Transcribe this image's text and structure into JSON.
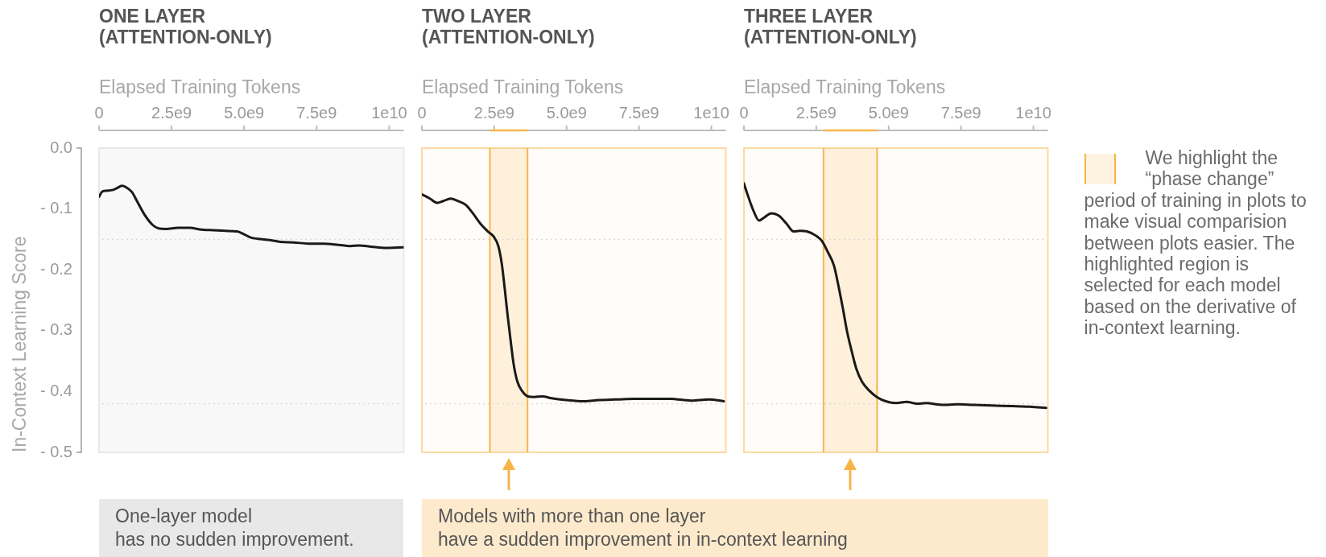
{
  "chart_data": [
    {
      "type": "line",
      "title": "ONE LAYER (ATTENTION-ONLY)",
      "xlabel": "Elapsed Training Tokens",
      "ylabel": "In-Context Learning Score",
      "x": [
        0,
        100000000.0,
        260000000.0,
        460000000.0,
        610000000.0,
        790000000.0,
        920000000.0,
        1130000000.0,
        1330000000.0,
        1590000000.0,
        1840000000.0,
        2050000000.0,
        2310000000.0,
        2720000000.0,
        3120000000.0,
        3530000000.0,
        3940000000.0,
        4350000000.0,
        4760000000.0,
        4970000000.0,
        5230000000.0,
        5480000000.0,
        5890000000.0,
        6250000000.0,
        6710000000.0,
        7220000000.0,
        7740000000.0,
        8250000000.0,
        8660000000.0,
        8970000000.0,
        9380000000.0,
        9890000000.0,
        10500000000.0
      ],
      "values": [
        -0.08,
        -0.072,
        -0.07,
        -0.069,
        -0.066,
        -0.062,
        -0.064,
        -0.072,
        -0.089,
        -0.111,
        -0.126,
        -0.132,
        -0.133,
        -0.131,
        -0.131,
        -0.134,
        -0.135,
        -0.136,
        -0.137,
        -0.141,
        -0.147,
        -0.149,
        -0.151,
        -0.154,
        -0.155,
        -0.157,
        -0.157,
        -0.159,
        -0.161,
        -0.16,
        -0.162,
        -0.164,
        -0.163
      ],
      "color": "#1a1a1a",
      "xlim": [
        0,
        10500000000.0
      ],
      "xticks": [
        {
          "value": 0,
          "label": "0"
        },
        {
          "value": 2500000000.0,
          "label": "2.5e9"
        },
        {
          "value": 5000000000.0,
          "label": "5.0e9"
        },
        {
          "value": 7500000000.0,
          "label": "7.5e9"
        },
        {
          "value": 10000000000.0,
          "label": "1e10"
        }
      ],
      "ylim": [
        -0.5,
        0
      ],
      "yticks": [
        {
          "value": 0,
          "label": "0.0"
        },
        {
          "value": -0.1,
          "label": "- 0.1"
        },
        {
          "value": -0.2,
          "label": "- 0.2"
        },
        {
          "value": -0.3,
          "label": "- 0.3"
        },
        {
          "value": -0.4,
          "label": "- 0.4"
        },
        {
          "value": -0.5,
          "label": "- 0.5"
        }
      ],
      "ref_lines": [
        {
          "axis": "y",
          "value": -0.15,
          "color": "#d9d9d9",
          "line_style": "dotted"
        },
        {
          "axis": "y",
          "value": -0.42,
          "color": "#d9d9d9",
          "line_style": "dotted"
        }
      ],
      "annotations": [
        "One-layer model",
        "has no sudden improvement."
      ]
    },
    {
      "type": "line",
      "title": "TWO LAYER (ATTENTION-ONLY)",
      "xlabel": "Elapsed Training Tokens",
      "x": [
        0,
        280000000.0,
        530000000.0,
        740000000.0,
        990000000.0,
        1250000000.0,
        1510000000.0,
        1760000000.0,
        2020000000.0,
        2280000000.0,
        2490000000.0,
        2640000000.0,
        2760000000.0,
        2860000000.0,
        2960000000.0,
        3070000000.0,
        3170000000.0,
        3300000000.0,
        3460000000.0,
        3660000000.0,
        3870000000.0,
        4170000000.0,
        4480000000.0,
        4990000000.0,
        5610000000.0,
        6120000000.0,
        6740000000.0,
        7350000000.0,
        7970000000.0,
        8580000000.0,
        9300000000.0,
        9920000000.0,
        10430000000.0
      ],
      "values": [
        -0.076,
        -0.083,
        -0.09,
        -0.087,
        -0.083,
        -0.087,
        -0.093,
        -0.107,
        -0.124,
        -0.137,
        -0.146,
        -0.161,
        -0.19,
        -0.23,
        -0.274,
        -0.318,
        -0.355,
        -0.384,
        -0.399,
        -0.408,
        -0.409,
        -0.408,
        -0.411,
        -0.414,
        -0.416,
        -0.414,
        -0.413,
        -0.412,
        -0.412,
        -0.412,
        -0.415,
        -0.413,
        -0.416
      ],
      "color": "#1a1a1a",
      "xlim": [
        0,
        10500000000.0
      ],
      "xticks": [
        {
          "value": 0,
          "label": "0"
        },
        {
          "value": 2500000000.0,
          "label": "2.5e9"
        },
        {
          "value": 5000000000.0,
          "label": "5.0e9"
        },
        {
          "value": 7500000000.0,
          "label": "7.5e9"
        },
        {
          "value": 10000000000.0,
          "label": "1e10"
        }
      ],
      "ylim": [
        -0.5,
        0
      ],
      "tick_labels": "x",
      "ref_lines": [
        {
          "axis": "y",
          "value": -0.15,
          "color": "#d9d9d9",
          "line_style": "dotted"
        },
        {
          "axis": "y",
          "value": -0.42,
          "color": "#d9d9d9",
          "line_style": "dotted"
        },
        {
          "axis": "x",
          "value": 2350000000.0,
          "color": "#f7b548"
        },
        {
          "axis": "x",
          "value": 3650000000.0,
          "color": "#f7b548"
        }
      ],
      "bands": [
        {
          "axis": "x",
          "from": 2350000000.0,
          "to": 3650000000.0,
          "color": "#f7b548"
        }
      ],
      "annotations": [
        "Models with more than one layer",
        "have a sudden improvement in in-context learning"
      ]
    },
    {
      "type": "line",
      "title": "THREE LAYER (ATTENTION-ONLY)",
      "xlabel": "Elapsed Training Tokens",
      "x": [
        0,
        130000000.0,
        340000000.0,
        520000000.0,
        700000000.0,
        950000000.0,
        1210000000.0,
        1470000000.0,
        1720000000.0,
        1930000000.0,
        2180000000.0,
        2490000000.0,
        2700000000.0,
        2900000000.0,
        3110000000.0,
        3260000000.0,
        3420000000.0,
        3570000000.0,
        3730000000.0,
        3880000000.0,
        4080000000.0,
        4340000000.0,
        4590000000.0,
        4900000000.0,
        5260000000.0,
        5620000000.0,
        5980000000.0,
        6290000000.0,
        6900000000.0,
        7360000000.0,
        7930000000.0,
        8540000000.0,
        9260000000.0,
        9880000000.0,
        10440000000.0
      ],
      "values": [
        -0.058,
        -0.077,
        -0.104,
        -0.119,
        -0.114,
        -0.107,
        -0.111,
        -0.124,
        -0.137,
        -0.136,
        -0.137,
        -0.144,
        -0.153,
        -0.171,
        -0.193,
        -0.225,
        -0.264,
        -0.303,
        -0.335,
        -0.362,
        -0.384,
        -0.399,
        -0.409,
        -0.416,
        -0.419,
        -0.417,
        -0.42,
        -0.419,
        -0.422,
        -0.421,
        -0.422,
        -0.423,
        -0.424,
        -0.425,
        -0.427
      ],
      "color": "#1a1a1a",
      "xlim": [
        0,
        10500000000.0
      ],
      "xticks": [
        {
          "value": 0,
          "label": "0"
        },
        {
          "value": 2500000000.0,
          "label": "2.5e9"
        },
        {
          "value": 5000000000.0,
          "label": "5.0e9"
        },
        {
          "value": 7500000000.0,
          "label": "7.5e9"
        },
        {
          "value": 10000000000.0,
          "label": "1e10"
        }
      ],
      "ylim": [
        -0.5,
        0
      ],
      "tick_labels": "x",
      "ref_lines": [
        {
          "axis": "y",
          "value": -0.15,
          "color": "#d9d9d9",
          "line_style": "dotted"
        },
        {
          "axis": "y",
          "value": -0.42,
          "color": "#d9d9d9",
          "line_style": "dotted"
        },
        {
          "axis": "x",
          "value": 2750000000.0,
          "color": "#f7b548"
        },
        {
          "axis": "x",
          "value": 4600000000.0,
          "color": "#f7b548"
        }
      ],
      "bands": [
        {
          "axis": "x",
          "from": 2750000000.0,
          "to": 4600000000.0,
          "color": "#f7b548"
        }
      ],
      "annotations": [
        "We highlight the “phase change” period of training in plots to make visual comparision between plots easier. The highlighted region is selected for each model based on the derivative of in-context learning."
      ]
    }
  ]
}
